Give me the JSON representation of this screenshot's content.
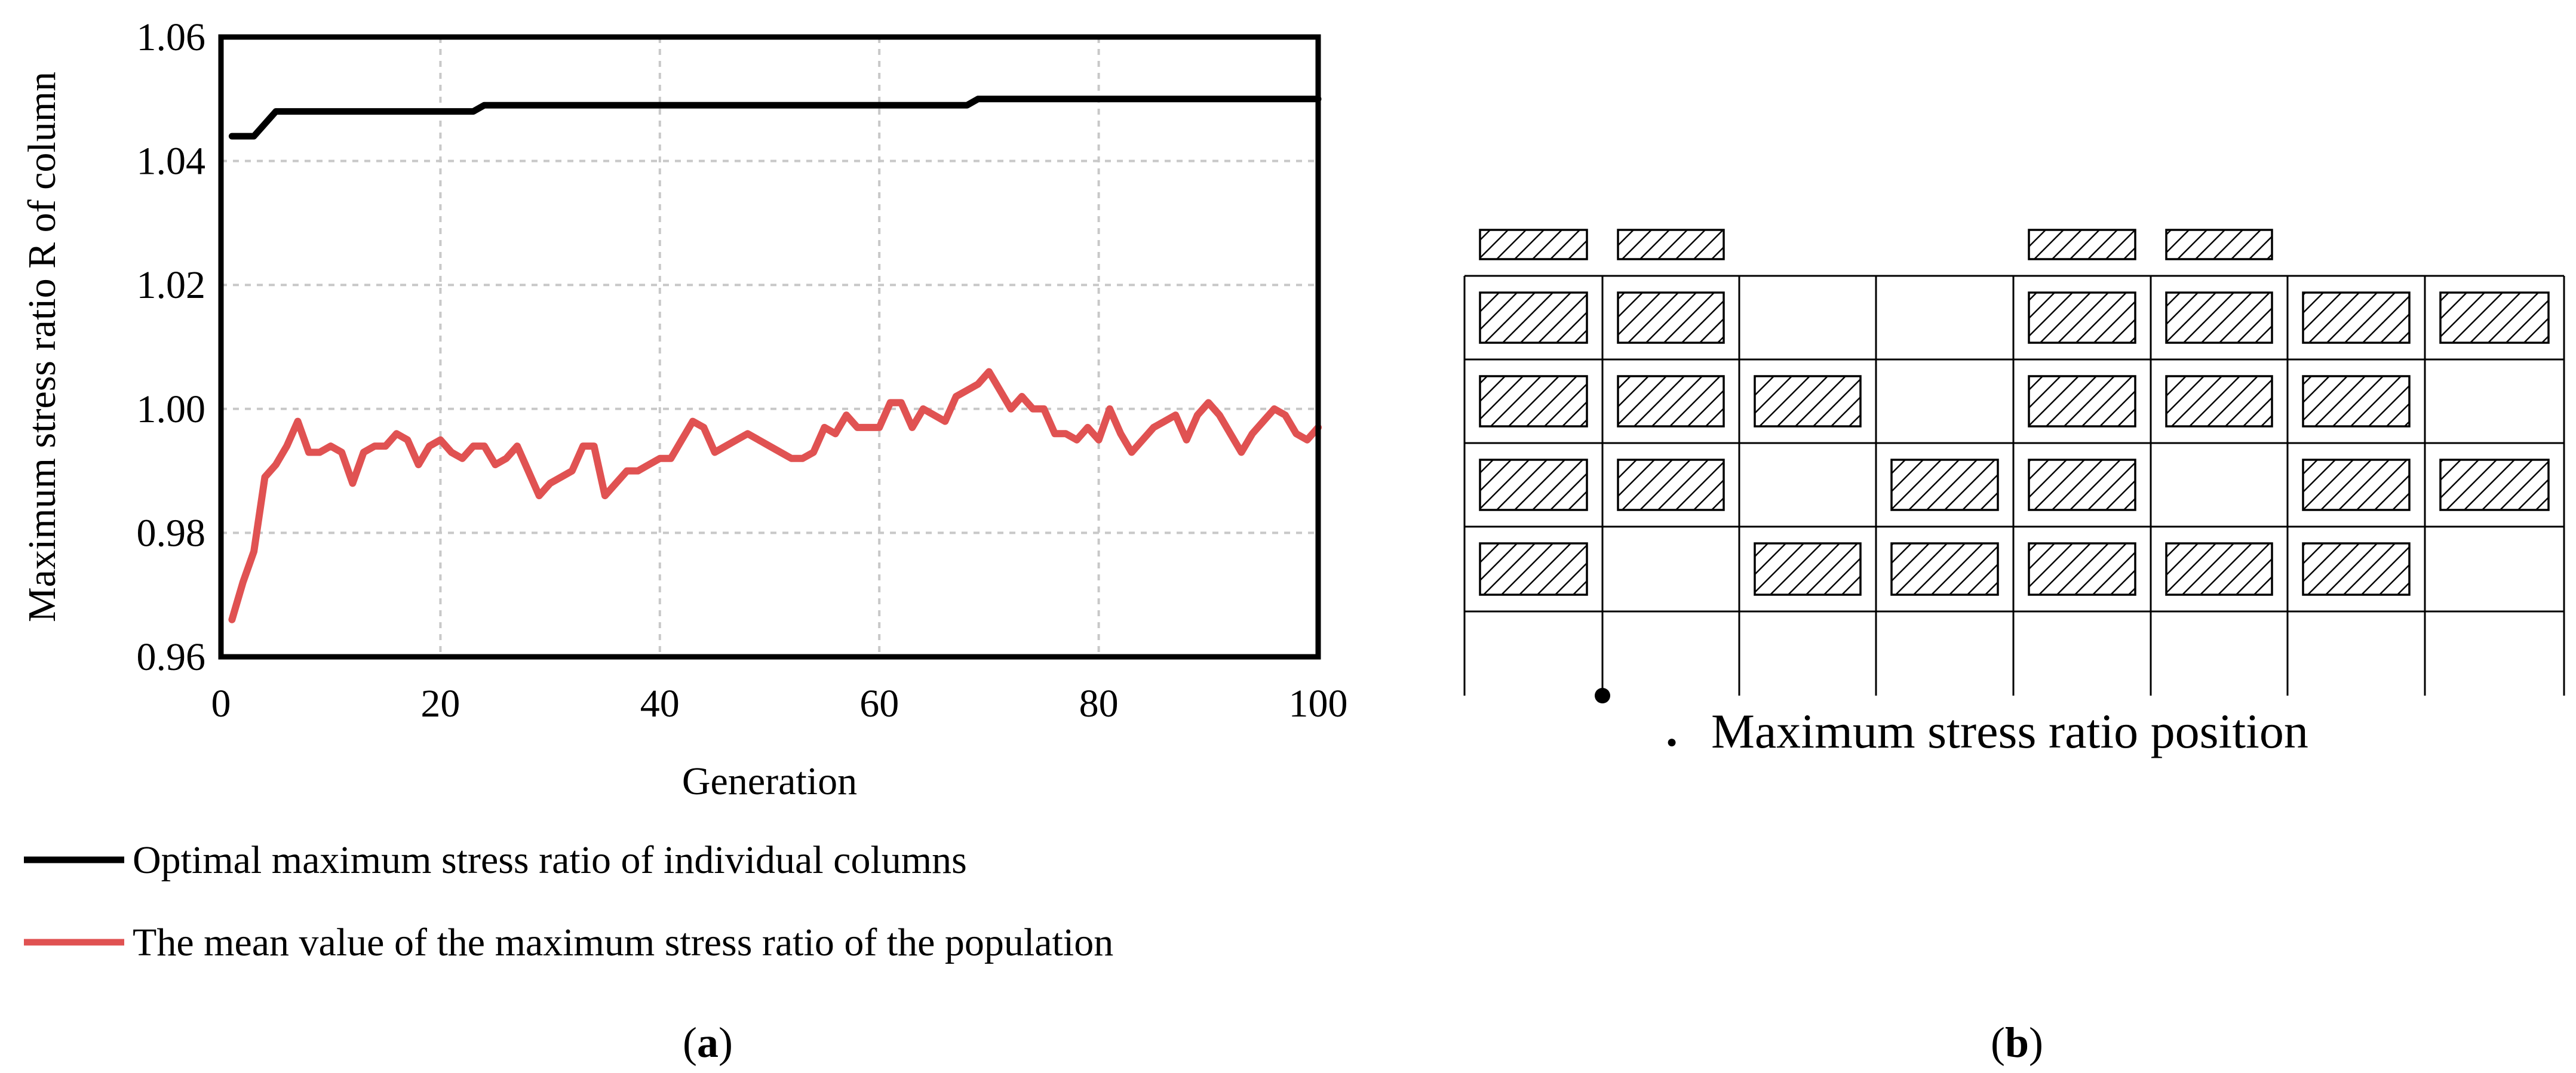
{
  "chart_data": [
    {
      "type": "line",
      "panel": "(a)",
      "xlabel": "Generation",
      "ylabel": "Maximum stress ratio R of column",
      "xlim": [
        0,
        100
      ],
      "ylim": [
        0.96,
        1.06
      ],
      "xticks": [
        0,
        20,
        40,
        60,
        80,
        100
      ],
      "yticks": [
        0.96,
        0.98,
        1.0,
        1.02,
        1.04,
        1.06
      ],
      "xtick_labels": [
        "0",
        "20",
        "40",
        "60",
        "80",
        "100"
      ],
      "ytick_labels": [
        "0.96",
        "0.98",
        "1.00",
        "1.02",
        "1.04",
        "1.06"
      ],
      "grid": true,
      "legend_position": "below",
      "series": [
        {
          "name": "Optimal maximum stress ratio of individual columns",
          "color": "#000000",
          "x": [
            1,
            3,
            5,
            23,
            24,
            67,
            68,
            69,
            70,
            100
          ],
          "y": [
            1.044,
            1.044,
            1.048,
            1.048,
            1.049,
            1.049,
            1.049,
            1.05,
            1.05,
            1.05
          ]
        },
        {
          "name": "The mean value of the maximum stress ratio of the population",
          "color": "#e05252",
          "x": [
            1,
            2,
            3,
            4,
            5,
            6,
            7,
            8,
            9,
            10,
            11,
            12,
            13,
            14,
            15,
            16,
            17,
            18,
            19,
            20,
            21,
            22,
            23,
            24,
            25,
            26,
            27,
            28,
            29,
            30,
            31,
            32,
            33,
            34,
            35,
            36,
            37,
            38,
            39,
            40,
            41,
            42,
            43,
            44,
            45,
            46,
            47,
            48,
            49,
            50,
            51,
            52,
            53,
            54,
            55,
            56,
            57,
            58,
            59,
            60,
            61,
            62,
            63,
            64,
            65,
            66,
            67,
            68,
            69,
            70,
            71,
            72,
            73,
            74,
            75,
            76,
            77,
            78,
            79,
            80,
            81,
            82,
            83,
            84,
            85,
            86,
            87,
            88,
            89,
            90,
            91,
            92,
            93,
            94,
            95,
            96,
            97,
            98,
            99,
            100
          ],
          "y": [
            0.966,
            0.972,
            0.977,
            0.989,
            0.991,
            0.994,
            0.998,
            0.993,
            0.993,
            0.994,
            0.993,
            0.988,
            0.993,
            0.994,
            0.994,
            0.996,
            0.995,
            0.991,
            0.994,
            0.995,
            0.993,
            0.992,
            0.994,
            0.994,
            0.991,
            0.992,
            0.994,
            0.99,
            0.986,
            0.988,
            0.989,
            0.99,
            0.994,
            0.994,
            0.986,
            0.988,
            0.99,
            0.99,
            0.991,
            0.992,
            0.992,
            0.995,
            0.998,
            0.997,
            0.993,
            0.994,
            0.995,
            0.996,
            0.995,
            0.994,
            0.993,
            0.992,
            0.992,
            0.993,
            0.997,
            0.996,
            0.999,
            0.997,
            0.997,
            0.997,
            1.001,
            1.001,
            0.997,
            1.0,
            0.999,
            0.998,
            1.002,
            1.003,
            1.004,
            1.006,
            1.003,
            1.0,
            1.002,
            1.0,
            1.0,
            0.996,
            0.996,
            0.995,
            0.997,
            0.995,
            1.0,
            0.996,
            0.993,
            0.995,
            0.997,
            0.998,
            0.999,
            0.995,
            0.999,
            1.001,
            0.999,
            0.996,
            0.993,
            0.996,
            0.998,
            1.0,
            0.999,
            0.996,
            0.995,
            0.997
          ]
        }
      ]
    },
    {
      "type": "diagram",
      "panel": "(b)",
      "legend_text": "Maximum stress ratio position",
      "grid_columns": 8,
      "grid_rows": 5,
      "top_row_hatched_columns": [
        0,
        1,
        4,
        5
      ],
      "hatched_cells": [
        [
          0,
          0
        ],
        [
          1,
          0
        ],
        [
          4,
          0
        ],
        [
          5,
          0
        ],
        [
          6,
          0
        ],
        [
          7,
          0
        ],
        [
          0,
          1
        ],
        [
          1,
          1
        ],
        [
          2,
          1
        ],
        [
          4,
          1
        ],
        [
          5,
          1
        ],
        [
          6,
          1
        ],
        [
          0,
          2
        ],
        [
          1,
          2
        ],
        [
          3,
          2
        ],
        [
          4,
          2
        ],
        [
          6,
          2
        ],
        [
          7,
          2
        ],
        [
          0,
          3
        ],
        [
          2,
          3
        ],
        [
          3,
          3
        ],
        [
          4,
          3
        ],
        [
          5,
          3
        ],
        [
          6,
          3
        ]
      ],
      "max_stress_node": [
        1,
        4
      ]
    }
  ],
  "labels": {
    "panel_a_prefix": "(",
    "panel_a_letter": "a",
    "panel_a_suffix": ")",
    "panel_b_prefix": "(",
    "panel_b_letter": "b",
    "panel_b_suffix": ")",
    "legend_marker_b": "●"
  }
}
